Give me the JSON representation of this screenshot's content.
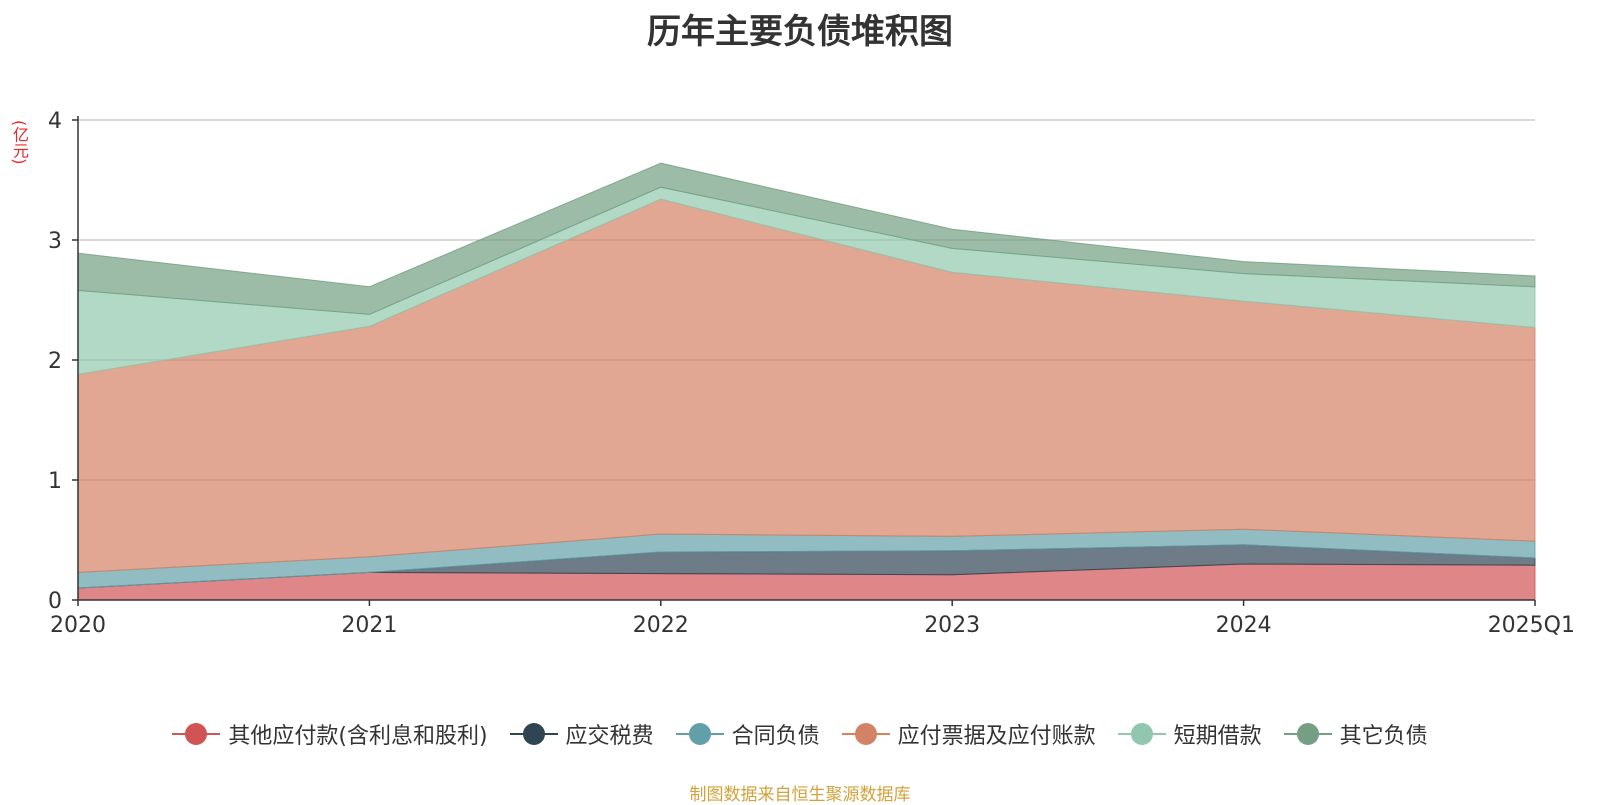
{
  "chart_data": {
    "type": "area",
    "stacked": true,
    "title": "历年主要负债堆积图",
    "ylabel": "(亿元)",
    "categories": [
      "2020",
      "2021",
      "2022",
      "2023",
      "2024",
      "2025Q1"
    ],
    "ylim": [
      0,
      4
    ],
    "yticks": [
      "0",
      "1",
      "2",
      "3",
      "4"
    ],
    "grid": true,
    "legend_position": "bottom",
    "series": [
      {
        "name": "其他应付款(含利息和股利)",
        "color": "#d05355",
        "values": [
          0.1,
          0.23,
          0.22,
          0.21,
          0.3,
          0.29
        ]
      },
      {
        "name": "应交税费",
        "color": "#2f4554",
        "values": [
          0.0,
          0.0,
          0.18,
          0.2,
          0.16,
          0.06
        ]
      },
      {
        "name": "合同负债",
        "color": "#61a0a8",
        "values": [
          0.13,
          0.13,
          0.15,
          0.12,
          0.13,
          0.14
        ]
      },
      {
        "name": "应付票据及应付账款",
        "color": "#d48265",
        "values": [
          1.65,
          1.92,
          2.79,
          2.2,
          1.9,
          1.78
        ]
      },
      {
        "name": "短期借款",
        "color": "#91c7ae",
        "values": [
          0.7,
          0.1,
          0.1,
          0.2,
          0.23,
          0.34
        ]
      },
      {
        "name": "其它负债",
        "color": "#749f83",
        "values": [
          0.31,
          0.23,
          0.2,
          0.16,
          0.1,
          0.09
        ]
      }
    ]
  },
  "source_note": "制图数据来自恒生聚源数据库"
}
